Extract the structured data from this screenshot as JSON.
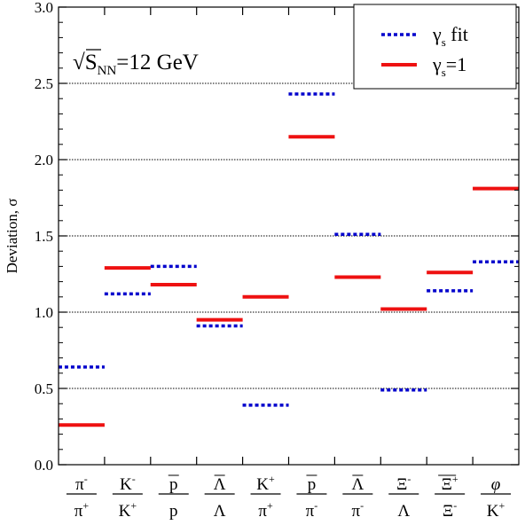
{
  "chart_data": {
    "type": "scatter",
    "ylabel": "Deviation, σ",
    "ylim": [
      0,
      3.0
    ],
    "yticks": [
      "0.0",
      "0.5",
      "1.0",
      "1.5",
      "2.0",
      "2.5",
      "3.0"
    ],
    "grid": "horizontal dotted lines at 0.5, 1.0, 1.5, 2.0, 2.5",
    "legend_position": "top-right",
    "annotation": {
      "prefix": "√S",
      "sub": "NN",
      "suffix": "=12 GeV"
    },
    "categories": [
      {
        "num": {
          "base": "π",
          "sup": "-"
        },
        "den": {
          "base": "π",
          "sup": "+"
        }
      },
      {
        "num": {
          "base": "K",
          "sup": "-"
        },
        "den": {
          "base": "K",
          "sup": "+"
        }
      },
      {
        "num": {
          "base": "p",
          "over": true
        },
        "den": {
          "base": "p"
        }
      },
      {
        "num": {
          "base": "Λ",
          "over": true
        },
        "den": {
          "base": "Λ"
        }
      },
      {
        "num": {
          "base": "K",
          "sup": "+"
        },
        "den": {
          "base": "π",
          "sup": "+"
        }
      },
      {
        "num": {
          "base": "p",
          "over": true
        },
        "den": {
          "base": "π",
          "sup": "-"
        }
      },
      {
        "num": {
          "base": "Λ",
          "over": true
        },
        "den": {
          "base": "π",
          "sup": "-"
        }
      },
      {
        "num": {
          "base": "Ξ",
          "sup": "-"
        },
        "den": {
          "base": "Λ"
        }
      },
      {
        "num": {
          "base": "Ξ",
          "sup": "+",
          "over": true
        },
        "den": {
          "base": "Ξ",
          "sup": "-"
        }
      },
      {
        "num": {
          "base": "φ",
          "italic": true
        },
        "den": {
          "base": "K",
          "sup": "+"
        }
      }
    ],
    "series": [
      {
        "name": {
          "base": "γ",
          "sub": "s",
          "tail": " fit"
        },
        "style": "dotted",
        "color": "#0000cc",
        "values": [
          0.64,
          1.12,
          1.3,
          0.91,
          0.39,
          2.43,
          1.51,
          0.49,
          1.14,
          1.33
        ]
      },
      {
        "name": {
          "base": "γ",
          "sub": "s",
          "tail": "=1"
        },
        "style": "solid",
        "color": "#ee1111",
        "values": [
          0.26,
          1.29,
          1.18,
          0.95,
          1.1,
          2.15,
          1.23,
          1.02,
          1.26,
          1.81
        ]
      }
    ]
  }
}
